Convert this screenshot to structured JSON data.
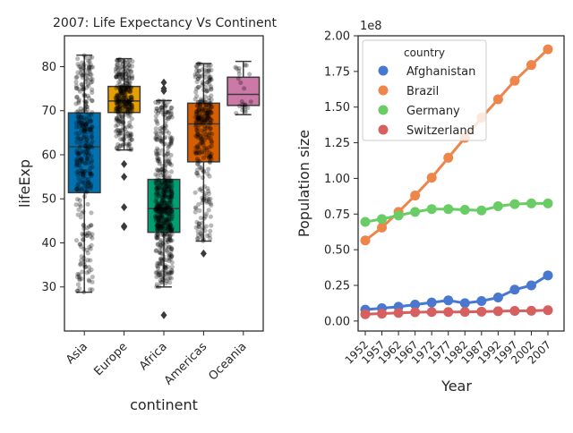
{
  "chart_data": [
    {
      "type": "box",
      "title": "2007: Life Expectancy Vs Continent",
      "xlabel": "continent",
      "ylabel": "lifeExp",
      "ylim": [
        20,
        87
      ],
      "yticks": [
        30,
        40,
        50,
        60,
        70,
        80
      ],
      "categories": [
        "Asia",
        "Europe",
        "Africa",
        "Americas",
        "Oceania"
      ],
      "colors": [
        "#0072b2",
        "#e69f00",
        "#009e73",
        "#d55e00",
        "#cc79a7"
      ],
      "boxes": [
        {
          "category": "Asia",
          "whisker_low": 28.8,
          "q1": 51.4,
          "median": 61.8,
          "q3": 69.5,
          "whisker_high": 82.6,
          "outliers": []
        },
        {
          "category": "Europe",
          "whisker_low": 61.1,
          "q1": 69.6,
          "median": 72.2,
          "q3": 75.5,
          "whisker_high": 81.8,
          "outliers": [
            57.9,
            55.0,
            48.1,
            43.8,
            43.6
          ]
        },
        {
          "category": "Africa",
          "whisker_low": 30.0,
          "q1": 42.4,
          "median": 47.8,
          "q3": 54.4,
          "whisker_high": 72.3,
          "outliers": [
            76.4,
            75.0,
            74.5,
            23.6
          ]
        },
        {
          "category": "Americas",
          "whisker_low": 40.4,
          "q1": 58.4,
          "median": 67.0,
          "q3": 71.7,
          "whisker_high": 80.7,
          "outliers": [
            37.6
          ]
        },
        {
          "category": "Oceania",
          "whisker_low": 69.1,
          "q1": 71.2,
          "median": 73.7,
          "q3": 77.6,
          "whisker_high": 81.2,
          "outliers": []
        }
      ],
      "strip_points": true,
      "grid": false
    },
    {
      "type": "line",
      "xlabel": "Year",
      "ylabel": "Population size",
      "scale_note": "1e8",
      "ylim": [
        -0.07,
        2.0
      ],
      "yticks": [
        0.0,
        0.25,
        0.5,
        0.75,
        1.0,
        1.25,
        1.5,
        1.75,
        2.0
      ],
      "ytick_labels": [
        "0.00",
        "0.25",
        "0.50",
        "0.75",
        "1.00",
        "1.25",
        "1.50",
        "1.75",
        "2.00"
      ],
      "x": [
        "1952",
        "1957",
        "1962",
        "1967",
        "1972",
        "1977",
        "1982",
        "1987",
        "1992",
        "1997",
        "2002",
        "2007"
      ],
      "legend_title": "country",
      "legend_position": "top-left",
      "grid": false,
      "series": [
        {
          "name": "Afghanistan",
          "color": "#4878d0",
          "values": [
            0.08,
            0.09,
            0.1,
            0.115,
            0.13,
            0.145,
            0.125,
            0.14,
            0.165,
            0.22,
            0.25,
            0.32
          ]
        },
        {
          "name": "Brazil",
          "color": "#ee854a",
          "values": [
            0.565,
            0.655,
            0.765,
            0.88,
            1.005,
            1.145,
            1.285,
            1.425,
            1.555,
            1.685,
            1.795,
            1.905
          ]
        },
        {
          "name": "Germany",
          "color": "#6acc64",
          "values": [
            0.695,
            0.715,
            0.74,
            0.765,
            0.785,
            0.785,
            0.78,
            0.775,
            0.805,
            0.82,
            0.825,
            0.825
          ]
        },
        {
          "name": "Switzerland",
          "color": "#d65f5f",
          "values": [
            0.048,
            0.052,
            0.057,
            0.062,
            0.063,
            0.063,
            0.064,
            0.066,
            0.069,
            0.071,
            0.072,
            0.076
          ]
        }
      ]
    }
  ]
}
